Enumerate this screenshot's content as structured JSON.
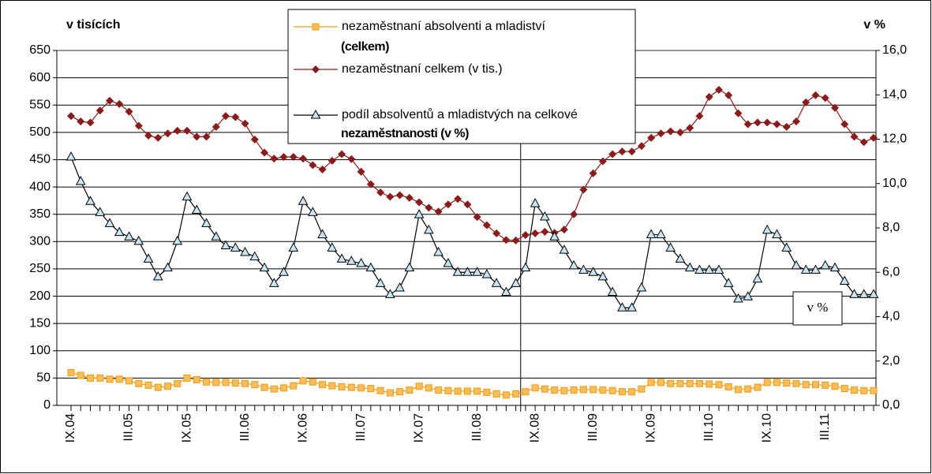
{
  "chart_data": {
    "type": "line",
    "left_label": "v tisících",
    "right_label": "v %",
    "box_label": "v %",
    "categories": [
      "IX.04",
      null,
      null,
      null,
      null,
      null,
      "III.05",
      null,
      null,
      null,
      null,
      null,
      "IX.05",
      null,
      null,
      null,
      null,
      null,
      "III.06",
      null,
      null,
      null,
      null,
      null,
      "IX.06",
      null,
      null,
      null,
      null,
      null,
      "III.07",
      null,
      null,
      null,
      null,
      null,
      "IX.07",
      null,
      null,
      null,
      null,
      null,
      "III.08",
      null,
      null,
      null,
      null,
      null,
      "IX.08",
      null,
      null,
      null,
      null,
      null,
      "III.09",
      null,
      null,
      null,
      null,
      null,
      "IX.09",
      null,
      null,
      null,
      null,
      null,
      "III.10",
      null,
      null,
      null,
      null,
      null,
      "IX.10",
      null,
      null,
      null,
      null,
      null,
      "III.11",
      null,
      null,
      null,
      null,
      null
    ],
    "ylim": [
      0,
      650
    ],
    "yticks": [
      0,
      50,
      100,
      150,
      200,
      250,
      300,
      350,
      400,
      450,
      500,
      550,
      600,
      650
    ],
    "y2lim": [
      0,
      16
    ],
    "y2ticks": [
      {
        "value": 0,
        "label": "0,0"
      },
      {
        "value": 2,
        "label": "2,0"
      },
      {
        "value": 4,
        "label": "4,0"
      },
      {
        "value": 6,
        "label": "6,0"
      },
      {
        "value": 8,
        "label": "8,0"
      },
      {
        "value": 10,
        "label": "10,0"
      },
      {
        "value": 12,
        "label": "12,0"
      },
      {
        "value": 14,
        "label": "14,0"
      },
      {
        "value": 16,
        "label": "16,0"
      }
    ],
    "grid": true,
    "series": [
      {
        "name": [
          "nezaměstnaní absolventi a mladiství",
          "(celkem)"
        ],
        "color": "#f39c12",
        "marker": "square",
        "values": [
          60,
          55,
          50,
          50,
          48,
          48,
          45,
          40,
          37,
          33,
          35,
          40,
          50,
          47,
          43,
          42,
          42,
          41,
          40,
          38,
          33,
          30,
          32,
          36,
          45,
          43,
          38,
          36,
          34,
          33,
          32,
          31,
          27,
          23,
          25,
          28,
          35,
          32,
          28,
          27,
          26,
          26,
          26,
          24,
          21,
          19,
          21,
          25,
          32,
          30,
          28,
          27,
          28,
          29,
          29,
          28,
          27,
          25,
          25,
          30,
          42,
          42,
          40,
          40,
          40,
          40,
          39,
          38,
          34,
          29,
          30,
          33,
          42,
          42,
          41,
          40,
          38,
          38,
          37,
          35,
          31,
          28,
          27,
          27
        ]
      },
      {
        "name": [
          "nezaměstnaní celkem (v tis.)"
        ],
        "color": "#8b1a1a",
        "marker": "diamond",
        "values": [
          530,
          520,
          518,
          540,
          558,
          552,
          538,
          512,
          494,
          490,
          498,
          503,
          503,
          492,
          492,
          510,
          530,
          528,
          516,
          487,
          463,
          452,
          455,
          455,
          452,
          440,
          432,
          448,
          460,
          451,
          428,
          405,
          390,
          382,
          385,
          380,
          372,
          362,
          355,
          368,
          378,
          368,
          345,
          330,
          315,
          303,
          302,
          312,
          315,
          318,
          316,
          322,
          350,
          395,
          425,
          447,
          460,
          465,
          465,
          475,
          490,
          498,
          502,
          500,
          508,
          530,
          565,
          578,
          568,
          535,
          515,
          518,
          518,
          515,
          510,
          520,
          555,
          568,
          563,
          545,
          515,
          492,
          482,
          490
        ]
      },
      {
        "name": [
          "podíl absolventů a mladistvých na celkové",
          "nezaměstnanosti (v %)"
        ],
        "color": "#000000",
        "marker": "triangle",
        "axis": "y2",
        "values": [
          11.2,
          10.1,
          9.2,
          8.7,
          8.2,
          7.8,
          7.6,
          7.4,
          6.6,
          5.8,
          6.2,
          7.4,
          9.4,
          8.8,
          8.2,
          7.6,
          7.2,
          7.1,
          6.9,
          6.7,
          6.2,
          5.5,
          6.0,
          7.1,
          9.2,
          8.7,
          7.7,
          7.1,
          6.6,
          6.5,
          6.4,
          6.2,
          5.5,
          5.0,
          5.3,
          6.2,
          8.6,
          7.9,
          6.9,
          6.4,
          6.0,
          6.0,
          6.0,
          5.9,
          5.5,
          5.1,
          5.5,
          6.2,
          9.1,
          8.5,
          7.6,
          7.0,
          6.3,
          6.1,
          6.0,
          5.8,
          5.1,
          4.4,
          4.4,
          5.3,
          7.7,
          7.7,
          7.1,
          6.6,
          6.2,
          6.1,
          6.1,
          6.1,
          5.5,
          4.8,
          4.9,
          5.7,
          7.9,
          7.7,
          7.1,
          6.3,
          6.1,
          6.1,
          6.3,
          6.2,
          5.6,
          5.0,
          5.0,
          5.0
        ]
      }
    ]
  }
}
